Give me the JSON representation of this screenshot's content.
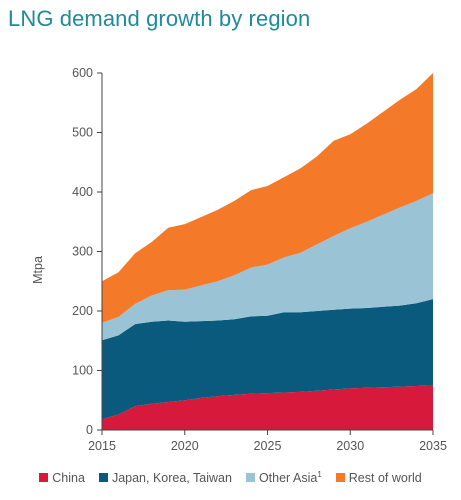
{
  "chart_data": {
    "type": "area",
    "stacked": true,
    "title": "LNG demand growth by region",
    "ylabel": "Mtpa",
    "xlabel": "",
    "xlim": [
      2015,
      2035
    ],
    "ylim": [
      0,
      600
    ],
    "xticks": [
      2015,
      2020,
      2025,
      2030,
      2035
    ],
    "yticks": [
      0,
      100,
      200,
      300,
      400,
      500,
      600
    ],
    "grid": false,
    "legend_position": "bottom",
    "x": [
      2015,
      2016,
      2017,
      2018,
      2019,
      2020,
      2021,
      2022,
      2023,
      2024,
      2025,
      2026,
      2027,
      2028,
      2029,
      2030,
      2031,
      2032,
      2033,
      2034,
      2035
    ],
    "series": [
      {
        "name": "China",
        "color": "#d7193c",
        "values": [
          18,
          26,
          40,
          44,
          47,
          50,
          54,
          57,
          59,
          61,
          62,
          63,
          64,
          66,
          68,
          70,
          71,
          72,
          73,
          74,
          75
        ]
      },
      {
        "name": "Japan, Korea, Taiwan",
        "color": "#0a5a7d",
        "values": [
          133,
          133,
          138,
          138,
          137,
          132,
          129,
          127,
          127,
          130,
          130,
          135,
          134,
          134,
          134,
          134,
          134,
          135,
          136,
          139,
          145
        ]
      },
      {
        "name": "Other Asia",
        "note": "1",
        "color": "#9ac4d6",
        "values": [
          29,
          31,
          34,
          44,
          51,
          54,
          60,
          66,
          74,
          82,
          86,
          92,
          100,
          112,
          124,
          135,
          145,
          155,
          165,
          172,
          178
        ]
      },
      {
        "name": "Rest of world",
        "color": "#f47a2a",
        "values": [
          70,
          75,
          85,
          90,
          105,
          110,
          115,
          120,
          125,
          130,
          132,
          135,
          142,
          148,
          160,
          158,
          165,
          173,
          181,
          188,
          202
        ]
      }
    ]
  }
}
